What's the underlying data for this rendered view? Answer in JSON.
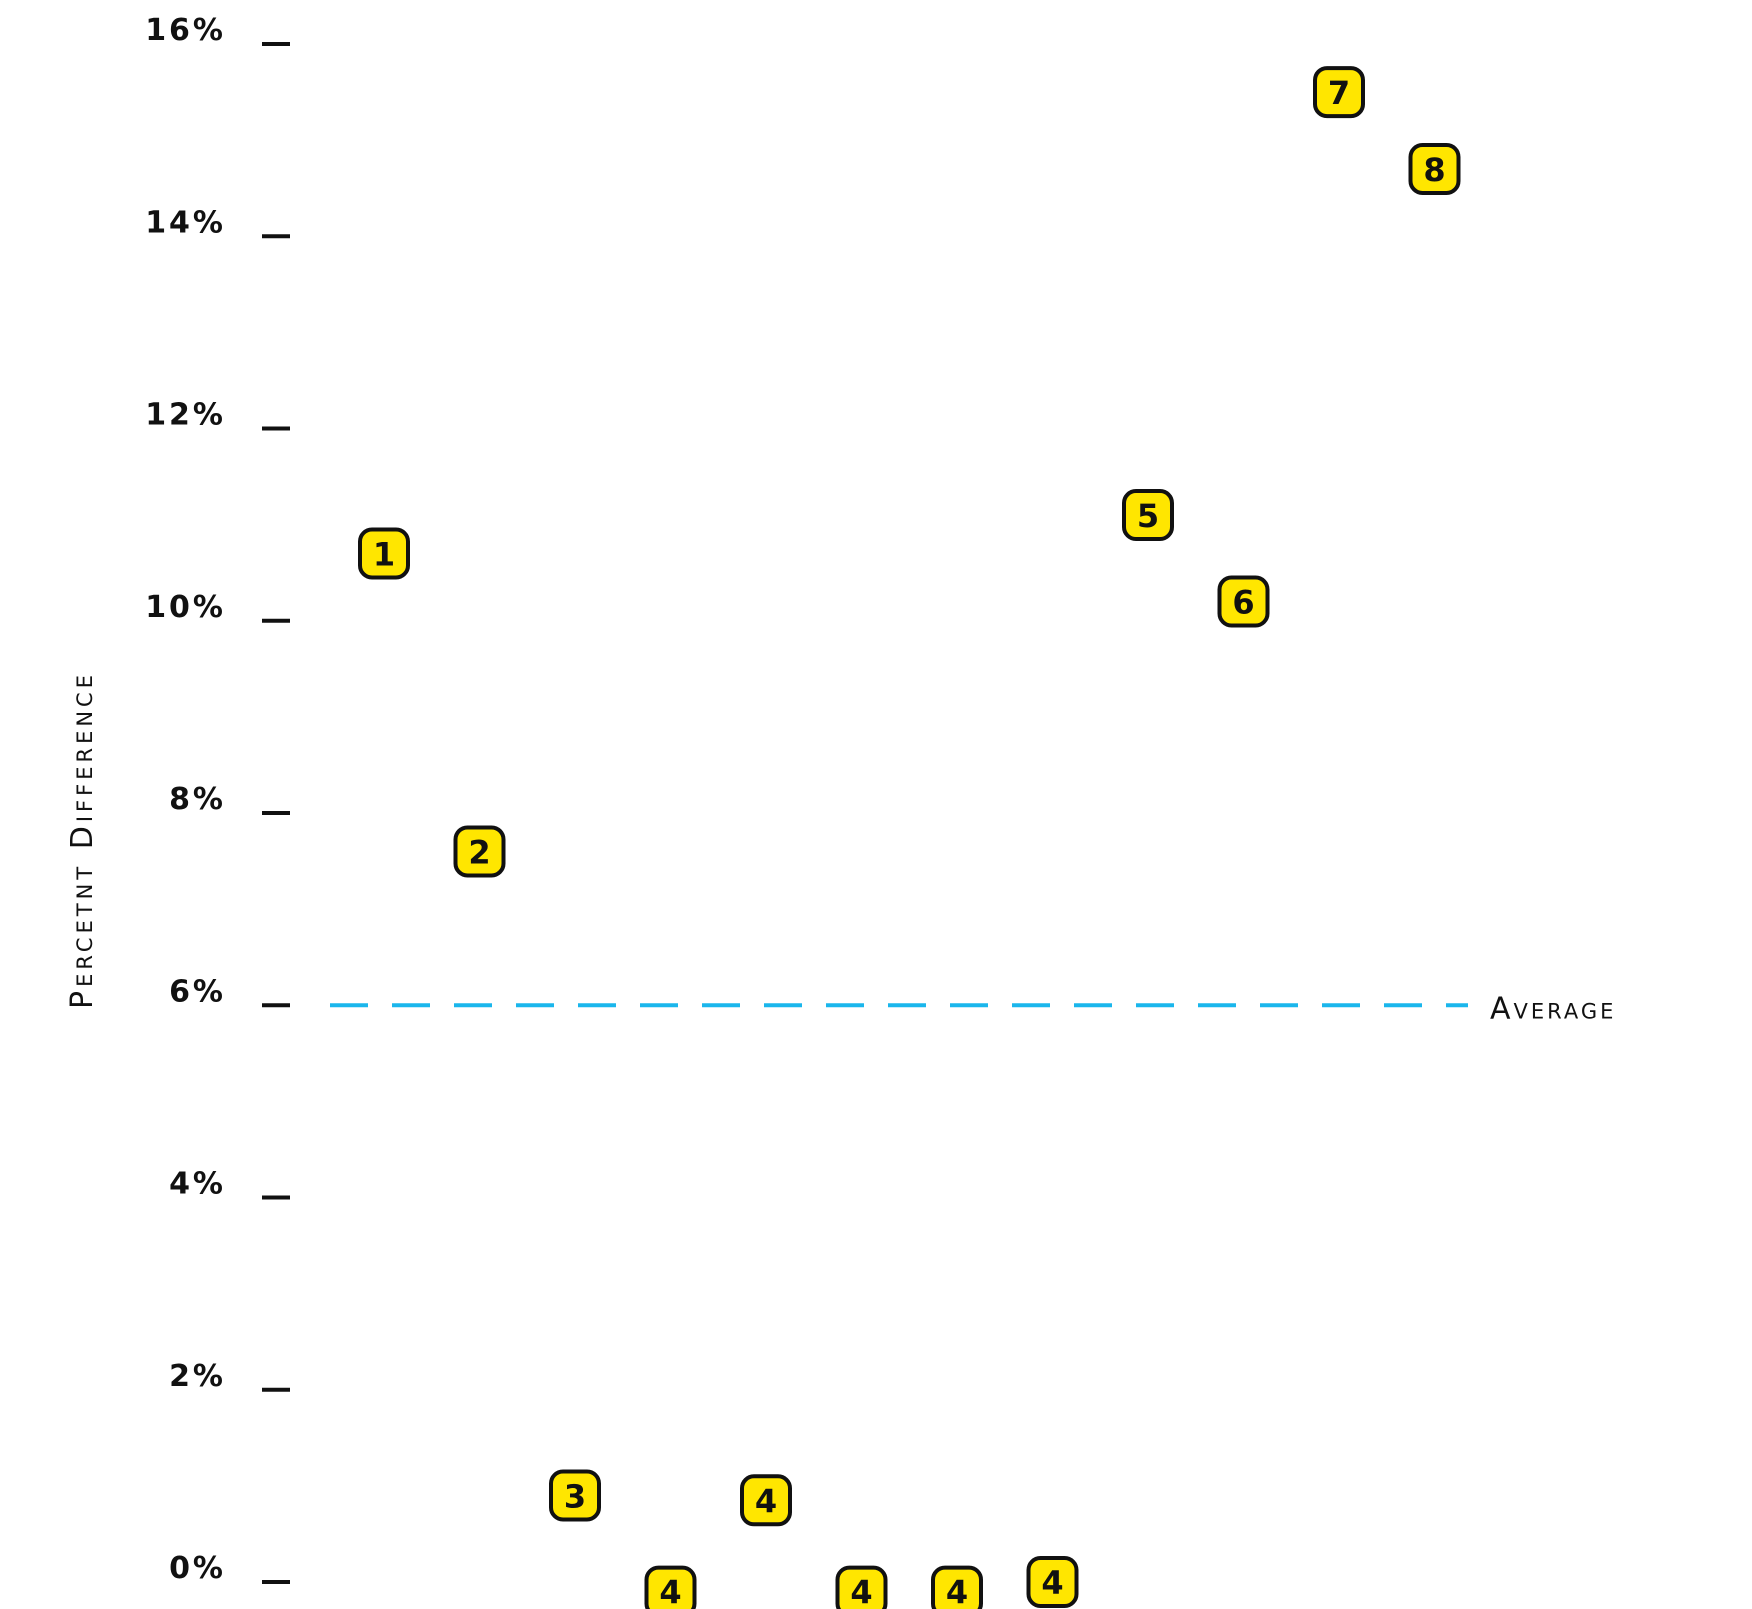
{
  "chart_data": {
    "type": "scatter",
    "title": "",
    "xlabel": "",
    "ylabel": "Percetnt Difference",
    "ylim": [
      0,
      16
    ],
    "yticks": [
      0,
      2,
      4,
      6,
      8,
      10,
      12,
      14,
      16
    ],
    "ytick_labels": [
      "0%",
      "2%",
      "4%",
      "6%",
      "8%",
      "10%",
      "12%",
      "14%",
      "16%"
    ],
    "grid": false,
    "marker_color": "#FFE600",
    "marker_border": "#111111",
    "reference_line": {
      "value": 6,
      "label": "Average",
      "color": "#1AB6EC",
      "style": "dashed"
    },
    "points": [
      {
        "x": 1,
        "y": 10.7,
        "label": "1"
      },
      {
        "x": 2,
        "y": 7.6,
        "label": "2"
      },
      {
        "x": 3,
        "y": 0.9,
        "label": "3"
      },
      {
        "x": 4,
        "y": -0.1,
        "label": "4"
      },
      {
        "x": 5,
        "y": 0.85,
        "label": "4"
      },
      {
        "x": 6,
        "y": -0.1,
        "label": "4"
      },
      {
        "x": 7,
        "y": -0.1,
        "label": "4"
      },
      {
        "x": 8,
        "y": 0.0,
        "label": "4"
      },
      {
        "x": 9,
        "y": 11.1,
        "label": "5"
      },
      {
        "x": 10,
        "y": 10.2,
        "label": "6"
      },
      {
        "x": 11,
        "y": 15.5,
        "label": "7"
      },
      {
        "x": 12,
        "y": 14.7,
        "label": "8"
      }
    ]
  }
}
